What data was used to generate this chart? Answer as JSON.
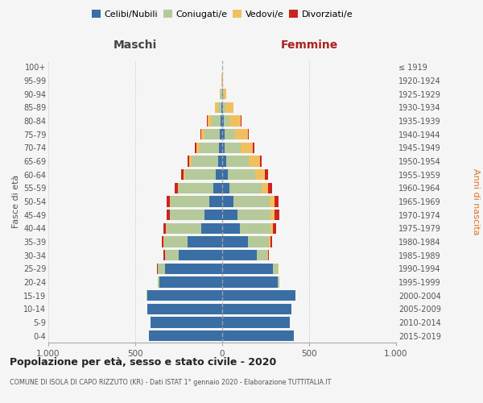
{
  "age_groups": [
    "0-4",
    "5-9",
    "10-14",
    "15-19",
    "20-24",
    "25-29",
    "30-34",
    "35-39",
    "40-44",
    "45-49",
    "50-54",
    "55-59",
    "60-64",
    "65-69",
    "70-74",
    "75-79",
    "80-84",
    "85-89",
    "90-94",
    "95-99",
    "100+"
  ],
  "birth_years": [
    "2015-2019",
    "2010-2014",
    "2005-2009",
    "2000-2004",
    "1995-1999",
    "1990-1994",
    "1985-1989",
    "1980-1984",
    "1975-1979",
    "1970-1974",
    "1965-1969",
    "1960-1964",
    "1955-1959",
    "1950-1954",
    "1945-1949",
    "1940-1944",
    "1935-1939",
    "1930-1934",
    "1925-1929",
    "1920-1924",
    "≤ 1919"
  ],
  "males": {
    "celibi": [
      420,
      410,
      430,
      430,
      360,
      330,
      250,
      200,
      120,
      100,
      75,
      50,
      38,
      25,
      18,
      15,
      8,
      5,
      2,
      1,
      1
    ],
    "coniugati": [
      0,
      0,
      0,
      5,
      10,
      40,
      80,
      135,
      200,
      200,
      220,
      200,
      175,
      150,
      110,
      85,
      50,
      20,
      5,
      1,
      0
    ],
    "vedovi": [
      0,
      0,
      0,
      0,
      0,
      1,
      1,
      2,
      2,
      3,
      5,
      5,
      10,
      15,
      20,
      20,
      25,
      15,
      5,
      1,
      0
    ],
    "divorziati": [
      0,
      0,
      0,
      0,
      1,
      3,
      5,
      10,
      15,
      18,
      18,
      18,
      15,
      10,
      8,
      5,
      3,
      2,
      0,
      0,
      0
    ]
  },
  "females": {
    "nubili": [
      410,
      390,
      400,
      420,
      320,
      290,
      200,
      150,
      100,
      90,
      65,
      40,
      32,
      22,
      15,
      12,
      8,
      5,
      3,
      1,
      1
    ],
    "coniugate": [
      0,
      0,
      0,
      3,
      8,
      30,
      60,
      120,
      180,
      190,
      210,
      185,
      160,
      130,
      90,
      60,
      35,
      15,
      5,
      1,
      0
    ],
    "vedove": [
      0,
      0,
      0,
      0,
      1,
      2,
      3,
      8,
      12,
      20,
      25,
      40,
      55,
      65,
      70,
      75,
      65,
      45,
      15,
      2,
      0
    ],
    "divorziate": [
      0,
      0,
      0,
      0,
      1,
      3,
      5,
      10,
      20,
      30,
      25,
      20,
      15,
      12,
      8,
      5,
      3,
      2,
      0,
      0,
      0
    ]
  },
  "color_celibi": "#3a6ea5",
  "color_coniugati": "#b5c99a",
  "color_vedovi": "#f0c060",
  "color_divorziati": "#cc2222",
  "xlim": 1000,
  "title": "Popolazione per età, sesso e stato civile - 2020",
  "subtitle": "COMUNE DI ISOLA DI CAPO RIZZUTO (KR) - Dati ISTAT 1° gennaio 2020 - Elaborazione TUTTITALIA.IT",
  "ylabel_left": "Fasce di età",
  "ylabel_right": "Anni di nascita",
  "xlabel_left": "Maschi",
  "xlabel_right": "Femmine",
  "legend_labels": [
    "Celibi/Nubili",
    "Coniugati/e",
    "Vedovi/e",
    "Divorziati/e"
  ],
  "bg_color": "#f5f5f5",
  "grid_color": "#cccccc"
}
